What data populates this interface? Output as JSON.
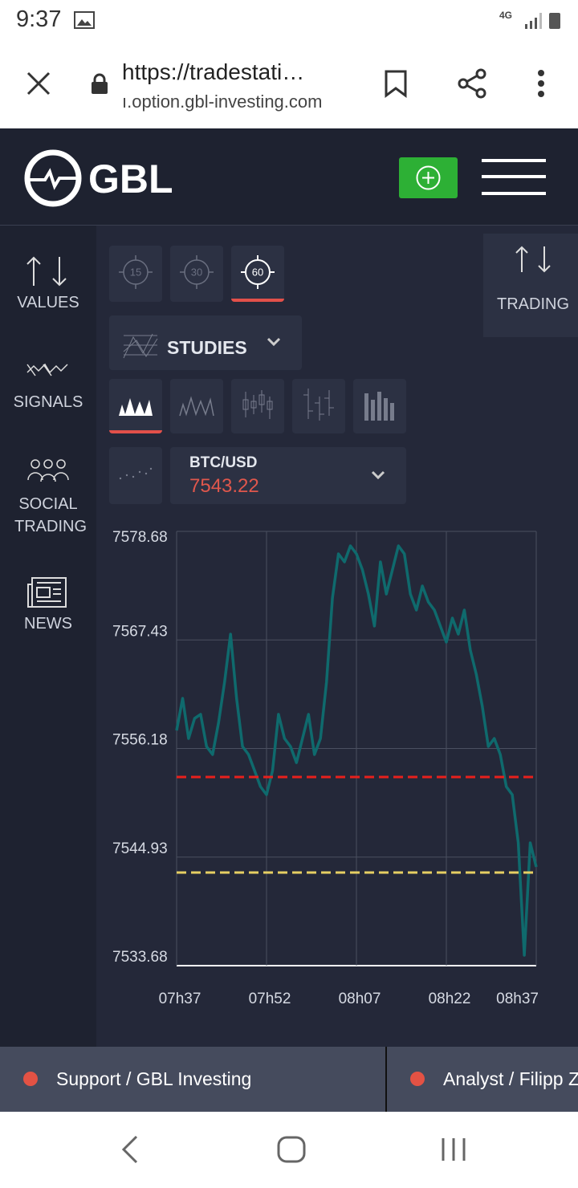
{
  "status_bar": {
    "time": "9:37",
    "network": "4G"
  },
  "browser": {
    "url": "https://tradestati…",
    "domain": "ı.option.gbl-investing.com"
  },
  "header": {
    "logo": "GBL"
  },
  "sidebar": [
    "VALUES",
    "SIGNALS",
    "SOCIAL TRADING",
    "NEWS"
  ],
  "trading_panel": "TRADING",
  "timeframes": [
    "15",
    "30",
    "60"
  ],
  "studies": "STUDIES",
  "instrument": {
    "symbol": "BTC/USD",
    "price": "7543.22"
  },
  "chart_data": {
    "type": "line",
    "color": "#0f6a6d",
    "grid": true,
    "x": [
      457,
      458,
      459,
      460,
      461,
      462,
      463,
      464,
      465,
      466,
      467,
      468,
      469,
      470,
      471,
      472,
      473,
      474,
      475,
      476,
      477,
      478,
      479,
      480,
      481,
      482,
      483,
      484,
      485,
      486,
      487,
      488,
      489,
      490,
      491,
      492,
      493,
      494,
      495,
      496,
      497,
      498,
      499,
      500,
      501,
      502,
      503,
      504,
      505,
      506,
      507,
      508,
      509,
      510,
      511,
      512,
      513,
      514,
      515,
      516,
      517
    ],
    "values": [
      7558.05,
      7561.38,
      7557.22,
      7559.3,
      7559.72,
      7556.39,
      7555.56,
      7558.88,
      7563.04,
      7568.03,
      7561.38,
      7556.39,
      7555.56,
      7553.89,
      7552.23,
      7551.4,
      7553.89,
      7559.72,
      7557.22,
      7556.39,
      7554.72,
      7557.22,
      7559.72,
      7555.56,
      7557.22,
      7563.04,
      7571.78,
      7576.35,
      7575.52,
      7577.18,
      7576.35,
      7574.69,
      7572.19,
      7568.87,
      7575.52,
      7572.19,
      7574.69,
      7577.18,
      7576.35,
      7572.19,
      7570.53,
      7573.02,
      7571.36,
      7570.53,
      7568.87,
      7567.2,
      7569.7,
      7568.03,
      7570.53,
      7566.37,
      7563.87,
      7560.55,
      7556.39,
      7557.22,
      7555.56,
      7552.23,
      7551.4,
      7546.41,
      7534.76,
      7546.41,
      7543.91
    ],
    "xlim": [
      457,
      517
    ],
    "xticks": [
      {
        "value": 457,
        "label": "07h37"
      },
      {
        "value": 472,
        "label": "07h52"
      },
      {
        "value": 487,
        "label": "08h07"
      },
      {
        "value": 502,
        "label": "08h22"
      },
      {
        "value": 517,
        "label": "08h37"
      }
    ],
    "ylim": [
      7533.68,
      7578.68
    ],
    "yticks": [
      7533.68,
      7544.93,
      7556.18,
      7567.43,
      7578.68
    ],
    "levels": [
      {
        "value": 7553.23,
        "color": "#e8201c"
      },
      {
        "value": 7543.33,
        "color": "#e6cf63"
      }
    ]
  },
  "tickers": [
    "Support / GBL Investing",
    "Analyst / Filipp Z"
  ]
}
